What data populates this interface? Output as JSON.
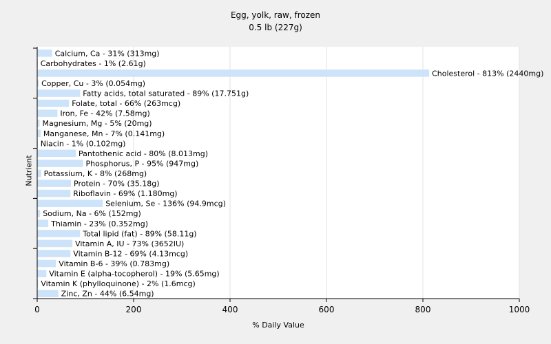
{
  "chart_data": {
    "type": "bar",
    "orientation": "horizontal",
    "title": "Egg, yolk, raw, frozen",
    "subtitle": "0.5 lb (227g)",
    "xlabel": "% Daily Value",
    "ylabel": "Nutrient",
    "xlim": [
      0,
      1000
    ],
    "xticks": [
      0,
      200,
      400,
      600,
      800,
      1000
    ],
    "grid": true,
    "bar_color": "#cce3fa",
    "categories": [
      "Calcium, Ca",
      "Carbohydrates",
      "Cholesterol",
      "Copper, Cu",
      "Fatty acids, total saturated",
      "Folate, total",
      "Iron, Fe",
      "Magnesium, Mg",
      "Manganese, Mn",
      "Niacin",
      "Pantothenic acid",
      "Phosphorus, P",
      "Potassium, K",
      "Protein",
      "Riboflavin",
      "Selenium, Se",
      "Sodium, Na",
      "Thiamin",
      "Total lipid (fat)",
      "Vitamin A, IU",
      "Vitamin B-12",
      "Vitamin B-6",
      "Vitamin E (alpha-tocopherol)",
      "Vitamin K (phylloquinone)",
      "Zinc, Zn"
    ],
    "values": [
      31,
      1,
      813,
      3,
      89,
      66,
      42,
      5,
      7,
      1,
      80,
      95,
      8,
      70,
      69,
      136,
      6,
      23,
      89,
      73,
      69,
      39,
      19,
      2,
      44
    ],
    "labels": [
      "Calcium, Ca - 31% (313mg)",
      "Carbohydrates - 1% (2.61g)",
      "Cholesterol - 813% (2440mg)",
      "Copper, Cu - 3% (0.054mg)",
      "Fatty acids, total saturated - 89% (17.751g)",
      "Folate, total - 66% (263mcg)",
      "Iron, Fe - 42% (7.58mg)",
      "Magnesium, Mg - 5% (20mg)",
      "Manganese, Mn - 7% (0.141mg)",
      "Niacin - 1% (0.102mg)",
      "Pantothenic acid - 80% (8.013mg)",
      "Phosphorus, P - 95% (947mg)",
      "Potassium, K - 8% (268mg)",
      "Protein - 70% (35.18g)",
      "Riboflavin - 69% (1.180mg)",
      "Selenium, Se - 136% (94.9mcg)",
      "Sodium, Na - 6% (152mg)",
      "Thiamin - 23% (0.352mg)",
      "Total lipid (fat) - 89% (58.11g)",
      "Vitamin A, IU - 73% (3652IU)",
      "Vitamin B-12 - 69% (4.13mcg)",
      "Vitamin B-6 - 39% (0.783mg)",
      "Vitamin E (alpha-tocopherol) - 19% (5.65mg)",
      "Vitamin K (phylloquinone) - 2% (1.6mcg)",
      "Zinc, Zn - 44% (6.54mg)"
    ]
  }
}
